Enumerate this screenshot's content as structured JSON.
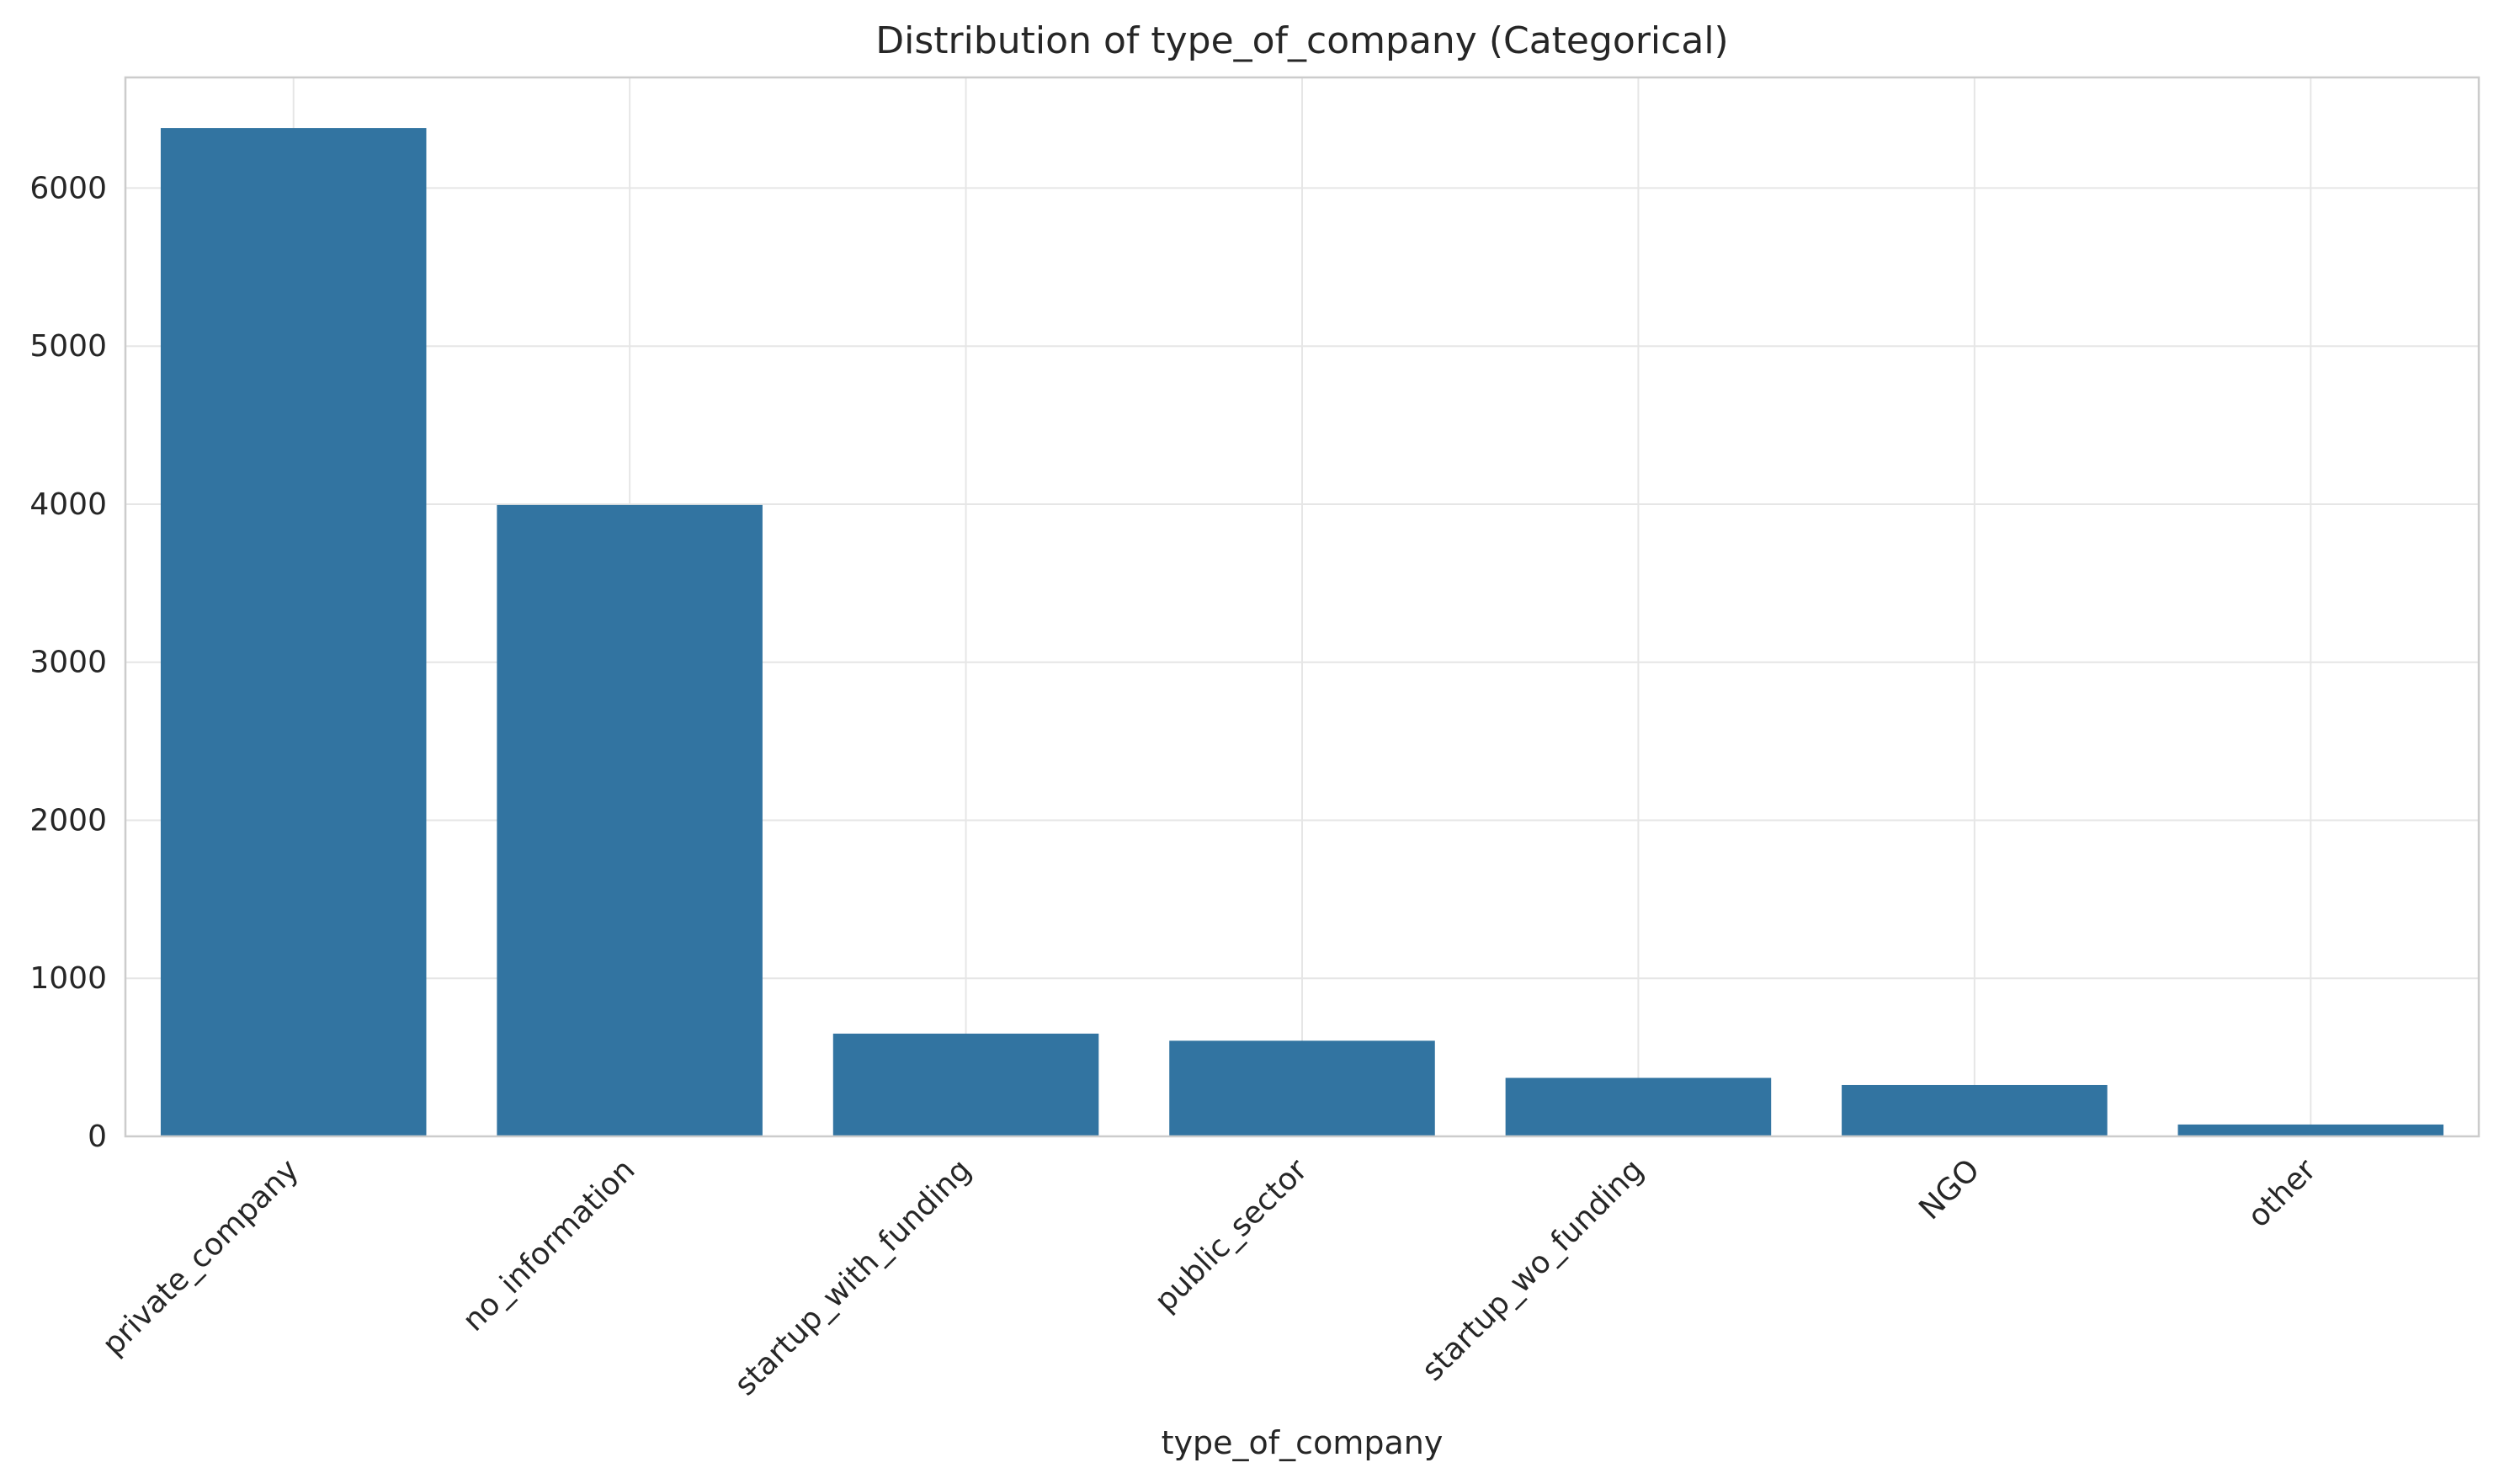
{
  "chart_data": {
    "type": "bar",
    "title": "Distribution of type_of_company (Categorical)",
    "xlabel": "type_of_company",
    "ylabel": "",
    "categories": [
      "private_company",
      "no_information",
      "startup_with_funding",
      "public_sector",
      "startup_wo_funding",
      "NGO",
      "other"
    ],
    "values": [
      6380,
      3995,
      650,
      605,
      370,
      325,
      75
    ],
    "ylim": [
      0,
      6700
    ],
    "yticks": [
      0,
      1000,
      2000,
      3000,
      4000,
      5000,
      6000
    ],
    "ytick_labels": [
      "0",
      "1000",
      "2000",
      "3000",
      "4000",
      "5000",
      "6000"
    ],
    "grid": true,
    "legend": "none",
    "colors": {
      "bar": "#3274a1",
      "grid": "#e6e6e6",
      "frame": "#cccccc",
      "text": "#262626"
    }
  }
}
